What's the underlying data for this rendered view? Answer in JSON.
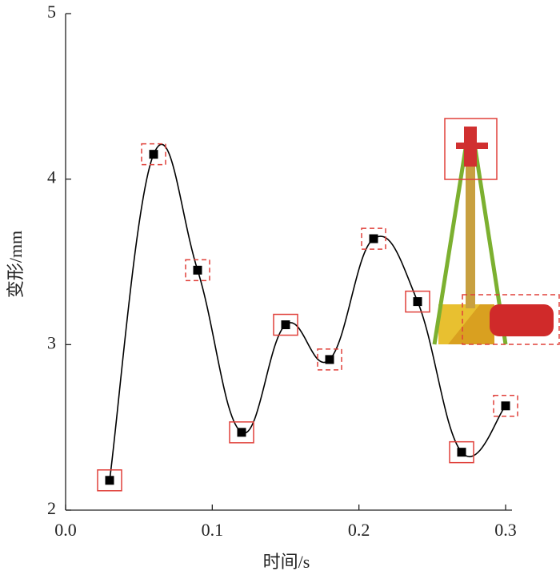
{
  "chart_data": {
    "type": "line",
    "x_label": "时间/s",
    "y_label": "变形/mm",
    "x": [
      0.03,
      0.06,
      0.09,
      0.12,
      0.15,
      0.18,
      0.21,
      0.24,
      0.27,
      0.3
    ],
    "series": [
      {
        "color": "#000000",
        "values": [
          2.18,
          4.15,
          3.45,
          2.47,
          3.12,
          2.91,
          3.64,
          3.26,
          2.35,
          2.63
        ]
      }
    ],
    "marker_boxes": [
      "solid",
      "dashed",
      "dashed",
      "solid",
      "solid",
      "dashed",
      "dashed",
      "solid",
      "solid",
      "dashed"
    ],
    "box_color": "#e0403a",
    "xlim": [
      0,
      0.3
    ],
    "xticks": [
      {
        "value": 0,
        "label": "0.0"
      },
      0.1,
      0.2,
      0.3
    ],
    "ylim": [
      2,
      5
    ],
    "yticks": [
      2,
      3,
      4,
      5
    ]
  }
}
